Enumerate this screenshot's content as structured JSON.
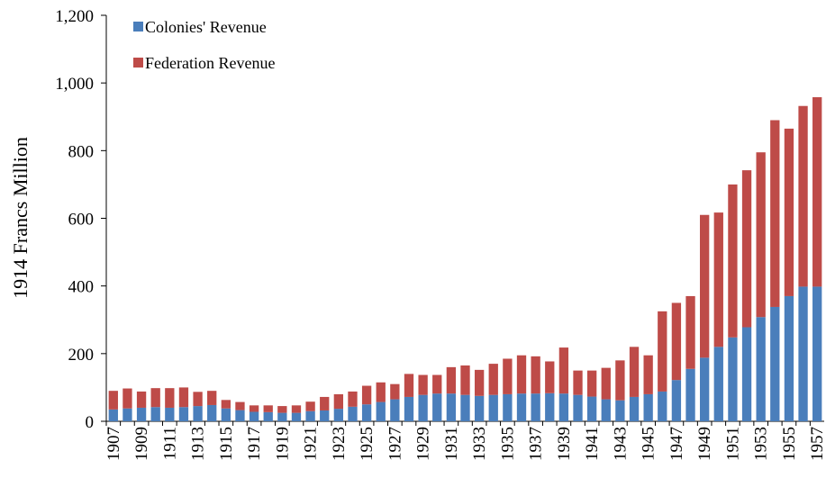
{
  "chart_data": {
    "type": "stacked_bar",
    "ylabel": "1914 Francs Million",
    "categories": [
      "1907",
      null,
      "1909",
      null,
      "1911",
      null,
      "1913",
      null,
      "1915",
      null,
      "1917",
      null,
      "1919",
      null,
      "1921",
      null,
      "1923",
      null,
      "1925",
      null,
      "1927",
      null,
      "1929",
      null,
      "1931",
      null,
      "1933",
      null,
      "1935",
      null,
      "1937",
      null,
      "1939",
      null,
      "1941",
      null,
      "1943",
      null,
      "1945",
      null,
      "1947",
      null,
      "1949",
      null,
      "1951",
      null,
      "1953",
      null,
      "1955",
      null,
      "1957"
    ],
    "series": [
      {
        "name": "Colonies' Revenue",
        "color": "#4a7ebb",
        "values": [
          35,
          38,
          40,
          42,
          40,
          42,
          45,
          48,
          38,
          33,
          28,
          27,
          25,
          25,
          30,
          32,
          37,
          43,
          50,
          57,
          65,
          72,
          78,
          82,
          82,
          78,
          75,
          78,
          80,
          82,
          82,
          83,
          82,
          78,
          73,
          65,
          62,
          72,
          80,
          88,
          122,
          155,
          188,
          220,
          248,
          278,
          308,
          338,
          370,
          398,
          398
        ]
      },
      {
        "name": "Federation Revenue",
        "color": "#be4b48",
        "values": [
          55,
          59,
          48,
          56,
          58,
          58,
          42,
          42,
          25,
          24,
          19,
          20,
          20,
          22,
          28,
          40,
          43,
          45,
          55,
          58,
          45,
          68,
          59,
          55,
          78,
          87,
          77,
          92,
          105,
          113,
          110,
          94,
          136,
          72,
          77,
          93,
          118,
          148,
          115,
          237,
          228,
          215,
          422,
          397,
          452,
          464,
          487,
          552,
          495,
          534,
          560
        ]
      }
    ],
    "ylim": [
      0,
      1200
    ],
    "yticks": [
      0,
      200,
      400,
      600,
      800,
      {
        "value": 1000,
        "label": "1,000"
      },
      {
        "value": 1200,
        "label": "1,200"
      }
    ],
    "legend": "upper left"
  }
}
